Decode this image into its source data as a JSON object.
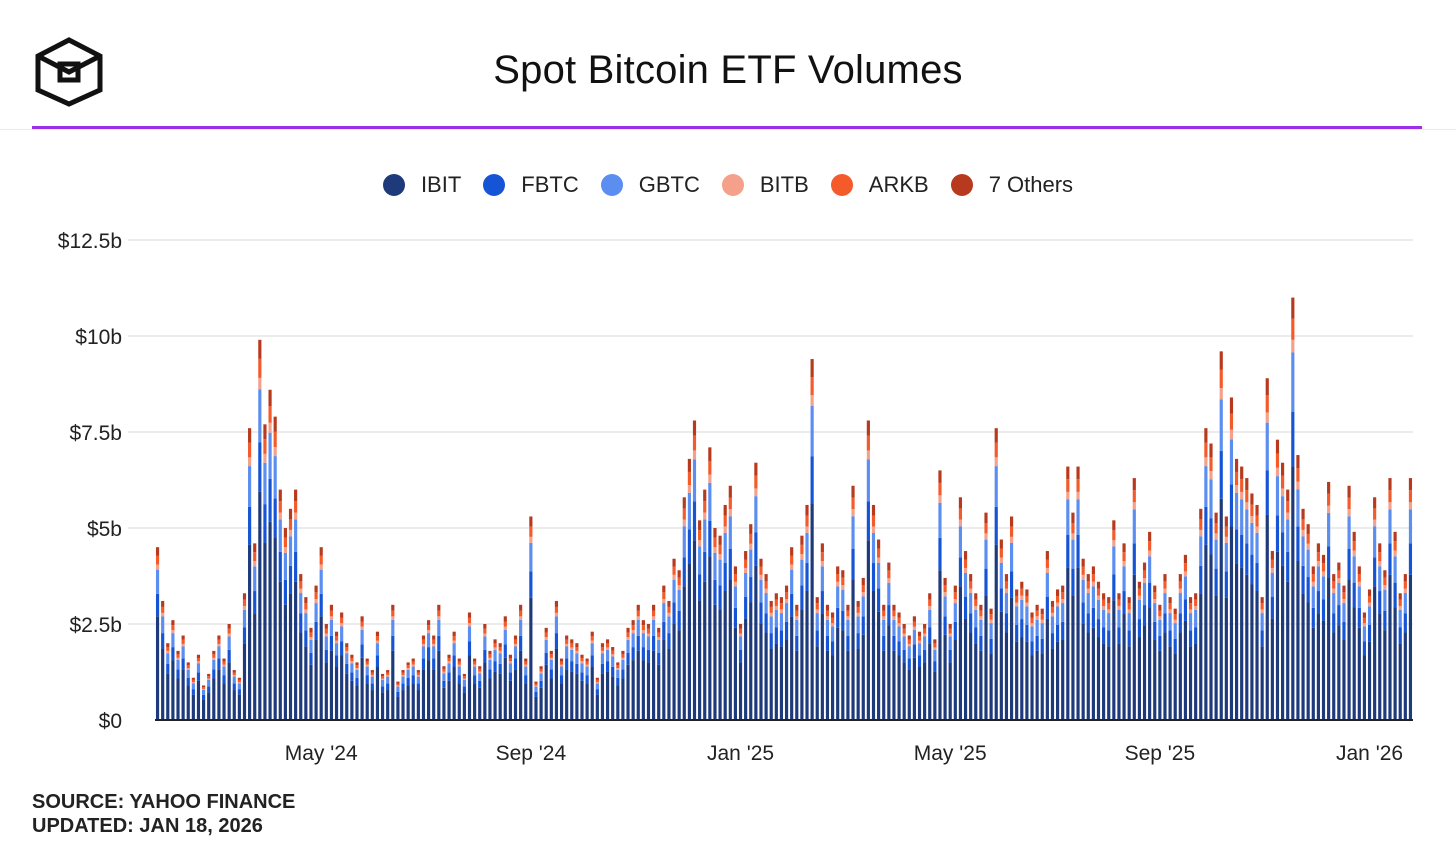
{
  "title": "Spot Bitcoin ETF Volumes",
  "logo": {
    "icon": "cube-logo-icon"
  },
  "footer": {
    "source": "SOURCE: YAHOO FINANCE",
    "updated": "UPDATED: JAN 18, 2026"
  },
  "colors": {
    "accent_rule": "#9b30e8",
    "grid": "#e6e6e6",
    "axis": "#222222"
  },
  "chart_data": {
    "type": "bar",
    "stacked": true,
    "title": "Spot Bitcoin ETF Volumes",
    "xlabel": "",
    "ylabel": "",
    "ylim": [
      0,
      12.5
    ],
    "yticks": [
      0,
      2.5,
      5,
      7.5,
      10,
      12.5
    ],
    "ytick_labels": [
      "$0",
      "$2.5b",
      "$5b",
      "$7.5b",
      "$10b",
      "$12.5b"
    ],
    "xtick_labels": [
      "May '24",
      "Sep '24",
      "Jan '25",
      "May '25",
      "Sep '25",
      "Jan '26"
    ],
    "xtick_index": [
      32,
      73,
      114,
      155,
      196,
      237
    ],
    "series": [
      {
        "name": "IBIT",
        "color": "#1e3a7b"
      },
      {
        "name": "FBTC",
        "color": "#1654d6"
      },
      {
        "name": "GBTC",
        "color": "#5b8ef0"
      },
      {
        "name": "BITB",
        "color": "#f5a08a"
      },
      {
        "name": "ARKB",
        "color": "#f45a2a"
      },
      {
        "name": "7 Others",
        "color": "#b83a1e"
      }
    ],
    "daily_total_volume_bn": [
      4.5,
      3.1,
      2.0,
      2.6,
      1.8,
      2.2,
      1.5,
      1.1,
      1.7,
      0.9,
      1.2,
      1.8,
      2.2,
      1.6,
      2.5,
      1.3,
      1.1,
      3.3,
      7.6,
      4.6,
      9.9,
      7.7,
      8.6,
      7.9,
      6.0,
      5.0,
      5.5,
      6.0,
      3.8,
      3.2,
      2.4,
      3.5,
      4.5,
      2.5,
      3.0,
      2.3,
      2.8,
      2.0,
      1.7,
      1.5,
      2.7,
      1.6,
      1.3,
      2.3,
      1.2,
      1.3,
      3.0,
      1.0,
      1.3,
      1.5,
      1.6,
      1.3,
      2.2,
      2.6,
      2.2,
      3.0,
      1.4,
      1.7,
      2.3,
      1.6,
      1.2,
      2.8,
      1.6,
      1.4,
      2.5,
      1.8,
      2.1,
      2.0,
      2.7,
      1.7,
      2.2,
      3.0,
      1.6,
      5.3,
      1.0,
      1.4,
      2.4,
      1.8,
      3.1,
      1.6,
      2.2,
      2.1,
      2.0,
      1.7,
      1.6,
      2.3,
      1.1,
      2.0,
      2.1,
      1.9,
      1.5,
      1.8,
      2.4,
      2.6,
      3.0,
      2.6,
      2.5,
      3.0,
      2.4,
      3.5,
      3.1,
      4.2,
      3.9,
      5.8,
      6.8,
      7.8,
      5.2,
      6.0,
      7.1,
      5.0,
      4.8,
      5.6,
      6.1,
      4.0,
      2.5,
      4.4,
      5.1,
      6.7,
      4.2,
      3.8,
      3.1,
      3.3,
      3.2,
      3.5,
      4.5,
      3.0,
      4.8,
      5.6,
      9.4,
      3.2,
      4.6,
      3.0,
      2.8,
      4.0,
      3.9,
      3.0,
      6.1,
      3.1,
      3.7,
      7.8,
      5.6,
      4.7,
      3.0,
      4.1,
      3.0,
      2.8,
      2.5,
      2.2,
      2.7,
      2.3,
      2.5,
      3.3,
      2.1,
      6.5,
      3.7,
      2.5,
      3.5,
      5.8,
      4.4,
      3.8,
      3.3,
      3.0,
      5.4,
      2.9,
      7.6,
      4.7,
      3.8,
      5.3,
      3.4,
      3.6,
      3.4,
      2.8,
      3.0,
      2.9,
      4.4,
      3.1,
      3.4,
      3.5,
      6.6,
      5.4,
      6.6,
      4.2,
      3.8,
      4.0,
      3.6,
      3.3,
      3.2,
      5.2,
      3.3,
      4.6,
      3.2,
      6.3,
      3.6,
      4.1,
      4.9,
      3.5,
      3.0,
      3.8,
      3.2,
      2.9,
      3.8,
      4.3,
      3.2,
      3.3,
      5.5,
      7.6,
      7.2,
      5.4,
      9.6,
      5.3,
      8.4,
      6.8,
      6.6,
      6.3,
      5.9,
      5.6,
      3.2,
      8.9,
      4.4,
      7.3,
      6.7,
      6.0,
      11.0,
      6.9,
      5.5,
      5.1,
      4.0,
      4.6,
      4.3,
      6.2,
      3.8,
      4.1,
      3.5,
      6.1,
      4.9,
      4.0,
      2.8,
      3.4,
      5.8,
      4.6,
      3.9,
      6.3,
      4.9,
      3.3,
      3.8,
      6.3
    ]
  }
}
